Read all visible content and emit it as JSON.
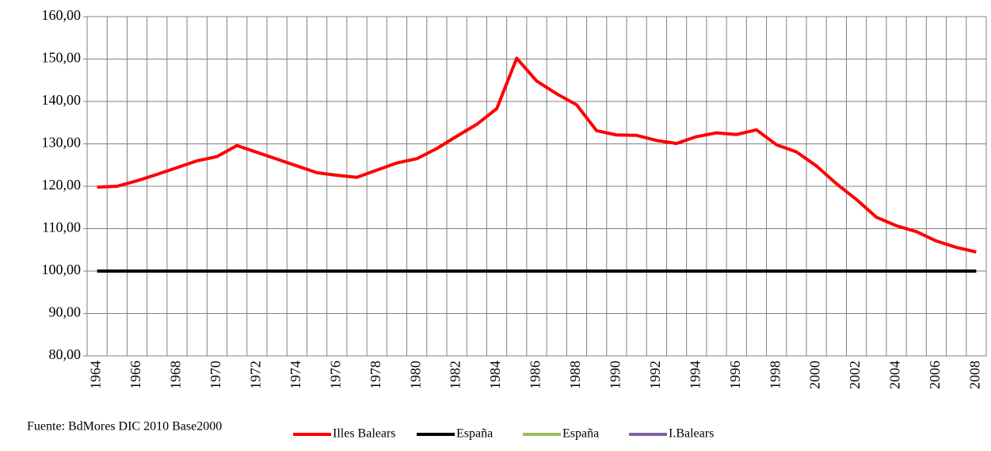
{
  "chart_data": {
    "type": "line",
    "source": "Fuente: BdMores DIC 2010 Base2000",
    "categories": [
      "1964",
      null,
      "1966",
      null,
      "1968",
      null,
      "1970",
      null,
      "1972",
      null,
      "1974",
      null,
      "1976",
      null,
      "1978",
      null,
      "1980",
      null,
      "1982",
      null,
      "1984",
      null,
      "1986",
      null,
      "1988",
      null,
      "1990",
      null,
      "1992",
      null,
      "1994",
      null,
      "1996",
      null,
      "1998",
      null,
      "2000",
      null,
      "2002",
      null,
      "2004",
      null,
      "2006",
      null,
      "2008"
    ],
    "series": [
      {
        "name": "Illes Balears",
        "color": "#ff0000",
        "values": [
          119.8,
          120.0,
          121.3,
          122.8,
          124.4,
          126.0,
          127.0,
          129.6,
          128.0,
          126.4,
          124.8,
          123.2,
          122.6,
          122.1,
          123.8,
          125.5,
          126.5,
          128.9,
          131.8,
          134.6,
          138.3,
          150.2,
          144.8,
          141.8,
          139.2,
          133.1,
          132.1,
          132.0,
          130.8,
          130.1,
          131.7,
          132.6,
          132.2,
          133.3,
          129.8,
          128.1,
          124.8,
          120.6,
          116.9,
          112.7,
          110.7,
          109.3,
          107.1,
          105.6,
          104.5
        ]
      },
      {
        "name": "España",
        "color": "#000000",
        "values": [
          100,
          100,
          100,
          100,
          100,
          100,
          100,
          100,
          100,
          100,
          100,
          100,
          100,
          100,
          100,
          100,
          100,
          100,
          100,
          100,
          100,
          100,
          100,
          100,
          100,
          100,
          100,
          100,
          100,
          100,
          100,
          100,
          100,
          100,
          100,
          100,
          100,
          100,
          100,
          100,
          100,
          100,
          100,
          100,
          100
        ]
      },
      {
        "name": "España",
        "color": "#9bbb59",
        "values": [
          null,
          null,
          null,
          null,
          null,
          null,
          null,
          null,
          null,
          null,
          null,
          null,
          null,
          null,
          null,
          null,
          null,
          null,
          null,
          null,
          null,
          null,
          null,
          null,
          null,
          null,
          null,
          null,
          null,
          null,
          null,
          null,
          null,
          null,
          null,
          null,
          null,
          null,
          null,
          null,
          null,
          null,
          null,
          null,
          null
        ]
      },
      {
        "name": "I.Balears",
        "color": "#8064a2",
        "values": [
          null,
          null,
          null,
          null,
          null,
          null,
          null,
          null,
          null,
          null,
          null,
          null,
          null,
          null,
          null,
          null,
          null,
          null,
          null,
          null,
          null,
          null,
          null,
          null,
          null,
          null,
          null,
          null,
          null,
          null,
          null,
          null,
          null,
          null,
          null,
          null,
          null,
          null,
          null,
          null,
          null,
          null,
          null,
          null,
          null
        ]
      }
    ],
    "ylim": [
      80,
      160
    ],
    "yticks": [
      {
        "value": 80,
        "label": "80,00"
      },
      {
        "value": 90,
        "label": "90,00"
      },
      {
        "value": 100,
        "label": "100,00"
      },
      {
        "value": 110,
        "label": "110,00"
      },
      {
        "value": 120,
        "label": "120,00"
      },
      {
        "value": 130,
        "label": "130,00"
      },
      {
        "value": 140,
        "label": "140,00"
      },
      {
        "value": 150,
        "label": "150,00"
      },
      {
        "value": 160,
        "label": "160,00"
      }
    ],
    "grid": true
  }
}
